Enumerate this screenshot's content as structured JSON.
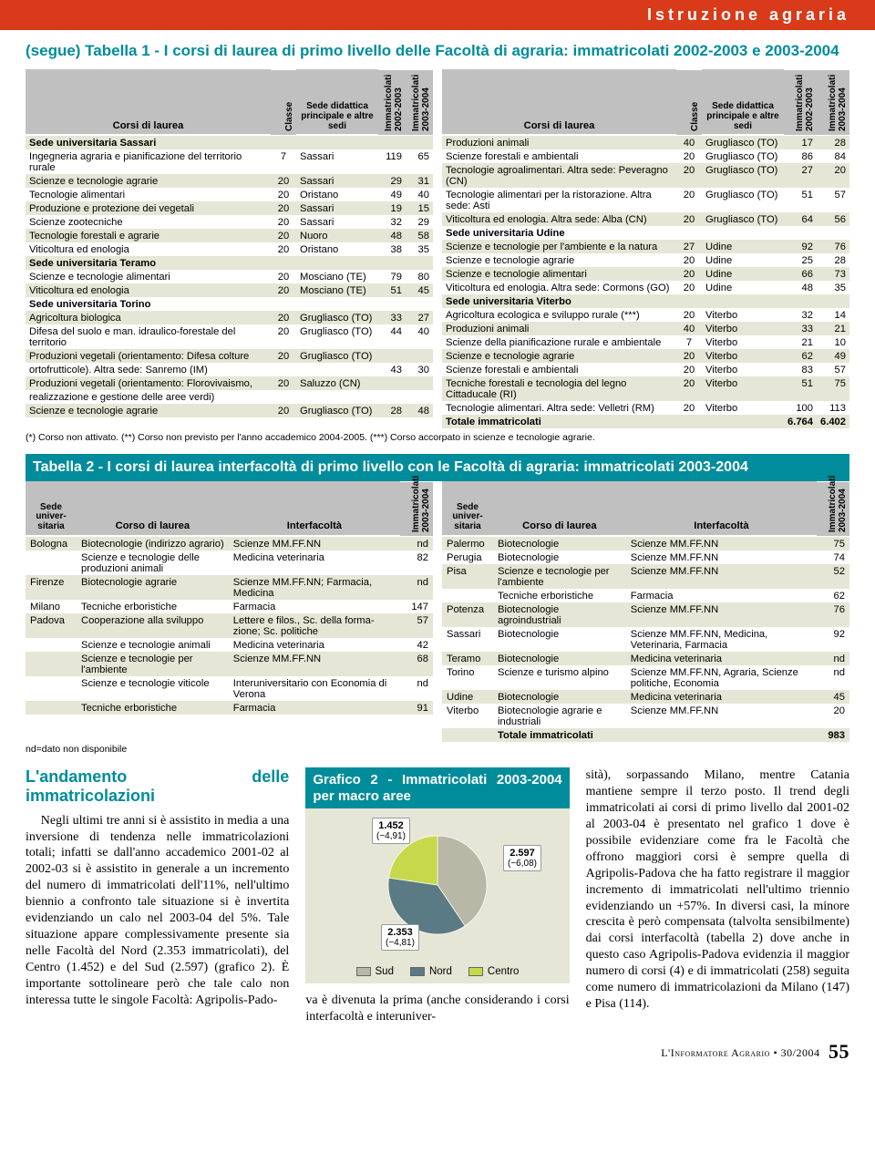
{
  "top_header": "Istruzione agraria",
  "table1": {
    "caption": "(segue) Tabella 1 - I corsi di laurea di primo livello delle Facoltà di agraria: immatricolati 2002-2003 e 2003-2004",
    "headers": {
      "corso": "Corsi di laurea",
      "classe": "Classe",
      "sede": "Sede didattica principale e altre sedi",
      "imm0203": "Immatricolati 2002-2003",
      "imm0304": "Immatricolati 2003-2004"
    },
    "left_rows": [
      {
        "section": true,
        "corso": "Sede universitaria Sassari"
      },
      {
        "corso": "Ingegneria agraria e pianificazione del territorio rurale",
        "classe": "7",
        "sede": "Sassari",
        "a": "119",
        "b": "65"
      },
      {
        "corso": "Scienze e tecnologie agrarie",
        "classe": "20",
        "sede": "Sassari",
        "a": "29",
        "b": "31"
      },
      {
        "corso": "Tecnologie alimentari",
        "classe": "20",
        "sede": "Oristano",
        "a": "49",
        "b": "40"
      },
      {
        "corso": "Produzione e protezione dei vegetali",
        "classe": "20",
        "sede": "Sassari",
        "a": "19",
        "b": "15"
      },
      {
        "corso": "Scienze zootecniche",
        "classe": "20",
        "sede": "Sassari",
        "a": "32",
        "b": "29"
      },
      {
        "corso": "Tecnologie forestali e agrarie",
        "classe": "20",
        "sede": "Nuoro",
        "a": "48",
        "b": "58"
      },
      {
        "corso": "Viticoltura ed enologia",
        "classe": "20",
        "sede": "Oristano",
        "a": "38",
        "b": "35"
      },
      {
        "section": true,
        "corso": "Sede universitaria Teramo"
      },
      {
        "corso": "Scienze e tecnologie alimentari",
        "classe": "20",
        "sede": "Mosciano (TE)",
        "a": "79",
        "b": "80"
      },
      {
        "corso": "Viticoltura ed enologia",
        "classe": "20",
        "sede": "Mosciano (TE)",
        "a": "51",
        "b": "45"
      },
      {
        "section": true,
        "corso": "Sede universitaria Torino"
      },
      {
        "corso": "Agricoltura biologica",
        "classe": "20",
        "sede": "Grugliasco (TO)",
        "a": "33",
        "b": "27"
      },
      {
        "corso": "Difesa del suolo e man. idraulico-forestale del territorio",
        "classe": "20",
        "sede": "Grugliasco (TO)",
        "a": "44",
        "b": "40"
      },
      {
        "corso": "Produzioni vegetali (orientamento: Difesa colture",
        "classe": "20",
        "sede": "Grugliasco (TO)",
        "a": "",
        "b": ""
      },
      {
        "corso": "    ortofrutticole). Altra sede: Sanremo (IM)",
        "classe": "",
        "sede": "",
        "a": "43",
        "b": "30"
      },
      {
        "corso": "Produzioni vegetali (orientamento: Florovivaismo,",
        "classe": "20",
        "sede": "Saluzzo (CN)",
        "a": "",
        "b": ""
      },
      {
        "corso": "    realizzazione e gestione delle aree verdi)",
        "classe": "",
        "sede": "",
        "a": "",
        "b": ""
      },
      {
        "corso": "Scienze e tecnologie agrarie",
        "classe": "20",
        "sede": "Grugliasco (TO)",
        "a": "28",
        "b": "48"
      }
    ],
    "right_rows": [
      {
        "corso": "Produzioni animali",
        "classe": "40",
        "sede": "Grugliasco (TO)",
        "a": "17",
        "b": "28"
      },
      {
        "corso": "Scienze forestali e ambientali",
        "classe": "20",
        "sede": "Grugliasco (TO)",
        "a": "86",
        "b": "84"
      },
      {
        "corso": "Tecnologie agroalimentari. Altra sede: Peveragno (CN)",
        "classe": "20",
        "sede": "Grugliasco (TO)",
        "a": "27",
        "b": "20"
      },
      {
        "corso": "Tecnologie alimentari per la ristorazione. Altra sede: Asti",
        "classe": "20",
        "sede": "Grugliasco (TO)",
        "a": "51",
        "b": "57"
      },
      {
        "corso": "Viticoltura ed enologia. Altra sede: Alba (CN)",
        "classe": "20",
        "sede": "Grugliasco (TO)",
        "a": "64",
        "b": "56"
      },
      {
        "section": true,
        "corso": "Sede universitaria Udine"
      },
      {
        "corso": "Scienze e tecnologie per l'ambiente e la natura",
        "classe": "27",
        "sede": "Udine",
        "a": "92",
        "b": "76"
      },
      {
        "corso": "Scienze e tecnologie agrarie",
        "classe": "20",
        "sede": "Udine",
        "a": "25",
        "b": "28"
      },
      {
        "corso": "Scienze e tecnologie alimentari",
        "classe": "20",
        "sede": "Udine",
        "a": "66",
        "b": "73"
      },
      {
        "corso": "Viticoltura ed enologia. Altra sede: Cormons (GO)",
        "classe": "20",
        "sede": "Udine",
        "a": "48",
        "b": "35"
      },
      {
        "section": true,
        "corso": "Sede universitaria Viterbo"
      },
      {
        "corso": "Agricoltura ecologica e sviluppo rurale (***)",
        "classe": "20",
        "sede": "Viterbo",
        "a": "32",
        "b": "14"
      },
      {
        "corso": "Produzioni animali",
        "classe": "40",
        "sede": "Viterbo",
        "a": "33",
        "b": "21"
      },
      {
        "corso": "Scienze della pianificazione rurale e ambientale",
        "classe": "7",
        "sede": "Viterbo",
        "a": "21",
        "b": "10"
      },
      {
        "corso": "Scienze e tecnologie agrarie",
        "classe": "20",
        "sede": "Viterbo",
        "a": "62",
        "b": "49"
      },
      {
        "corso": "Scienze forestali e ambientali",
        "classe": "20",
        "sede": "Viterbo",
        "a": "83",
        "b": "57"
      },
      {
        "corso": "Tecniche forestali e tecnologia del legno Cittaducale (RI)",
        "classe": "20",
        "sede": "Viterbo",
        "a": "51",
        "b": "75"
      },
      {
        "corso": "Tecnologie alimentari. Altra sede: Velletri (RM)",
        "classe": "20",
        "sede": "Viterbo",
        "a": "100",
        "b": "113"
      },
      {
        "section": true,
        "corso": "Totale immatricolati",
        "classe": "",
        "sede": "",
        "a": "6.764",
        "b": "6.402"
      }
    ],
    "footnote": "(*) Corso non attivato. (**) Corso non previsto per l'anno accademico 2004-2005. (***) Corso accorpato in scienze e tecnologie agrarie."
  },
  "table2": {
    "caption": "Tabella 2 - I corsi di laurea interfacoltà di primo livello con le Facoltà di agraria: immatricolati 2003-2004",
    "headers": {
      "sede": "Sede univer- sitaria",
      "corso": "Corso di laurea",
      "inter": "Interfacoltà",
      "imm": "Immatricolati 2003-2004"
    },
    "left_rows": [
      {
        "sede": "Bologna",
        "corso": "Biotecnologie (indirizzo agrario)",
        "inter": "Scienze MM.FF.NN",
        "n": "nd"
      },
      {
        "sede": "",
        "corso": "Scienze e tecnologie delle produzioni animali",
        "inter": "Medicina veterinaria",
        "n": "82"
      },
      {
        "sede": "Firenze",
        "corso": "Biotecnologie agrarie",
        "inter": "Scienze MM.FF.NN; Farmacia, Medicina",
        "n": "nd"
      },
      {
        "sede": "Milano",
        "corso": "Tecniche erboristiche",
        "inter": "Farmacia",
        "n": "147"
      },
      {
        "sede": "Padova",
        "corso": "Cooperazione alla sviluppo",
        "inter": "Lettere e filos., Sc. della forma- zione; Sc. politiche",
        "n": "57"
      },
      {
        "sede": "",
        "corso": "Scienze e tecnologie animali",
        "inter": "Medicina veterinaria",
        "n": "42"
      },
      {
        "sede": "",
        "corso": "Scienze e tecnologie per l'ambiente",
        "inter": "Scienze MM.FF.NN",
        "n": "68"
      },
      {
        "sede": "",
        "corso": "Scienze e tecnologie viticole",
        "inter": "Interuniversitario con Economia di Verona",
        "n": "nd"
      },
      {
        "sede": "",
        "corso": "Tecniche erboristiche",
        "inter": "Farmacia",
        "n": "91"
      }
    ],
    "right_rows": [
      {
        "sede": "Palermo",
        "corso": "Biotecnologie",
        "inter": "Scienze MM.FF.NN",
        "n": "75"
      },
      {
        "sede": "Perugia",
        "corso": "Biotecnologie",
        "inter": "Scienze MM.FF.NN",
        "n": "74"
      },
      {
        "sede": "Pisa",
        "corso": "Scienze e tecnologie per l'ambiente",
        "inter": "Scienze MM.FF.NN",
        "n": "52"
      },
      {
        "sede": "",
        "corso": "Tecniche erboristiche",
        "inter": "Farmacia",
        "n": "62"
      },
      {
        "sede": "Potenza",
        "corso": "Biotecnologie agroindustriali",
        "inter": "Scienze MM.FF.NN",
        "n": "76"
      },
      {
        "sede": "Sassari",
        "corso": "Biotecnologie",
        "inter": "Scienze MM.FF.NN, Medicina, Veterinaria, Farmacia",
        "n": "92"
      },
      {
        "sede": "Teramo",
        "corso": "Biotecnologie",
        "inter": "Medicina veterinaria",
        "n": "nd"
      },
      {
        "sede": "Torino",
        "corso": "Scienze e turismo alpino",
        "inter": "Scienze MM.FF.NN, Agraria, Scienze politiche, Economia",
        "n": "nd"
      },
      {
        "sede": "Udine",
        "corso": "Biotecnologie",
        "inter": "Medicina veterinaria",
        "n": "45"
      },
      {
        "sede": "Viterbo",
        "corso": "Biotecnologie agrarie e industriali",
        "inter": "Scienze MM.FF.NN",
        "n": "20"
      },
      {
        "sede": "",
        "corso": "Totale immatricolati",
        "inter": "",
        "n": "983",
        "bold": true
      }
    ],
    "footnote": "nd=dato non disponibile"
  },
  "article": {
    "heading": "L'andamento delle immatricolazioni",
    "col1": "Negli ultimi tre anni si è assistito in media a una inversione di tendenza nelle immatricolazioni totali; infatti se dall'anno accademico 2001-02 al 2002-03 si è assistito in generale a un incremento del numero di immatricolati dell'11%, nell'ultimo biennio a confronto tale situazione si è invertita evidenziando un calo nel 2003-04 del 5%. Tale situazione appare complessivamente presente sia nelle Facoltà del Nord (2.353 immatricolati), del Centro (1.452) e del Sud (2.597) (grafico 2). È importante sottolineare però che tale calo non interessa tutte le singole Facoltà: Agripolis-Pado-",
    "col2_tail": "va è divenuta la prima (anche considerando i corsi interfacoltà e interuniver-",
    "col3": "sità), sorpassando Milano, mentre Catania mantiene sempre il terzo posto. Il trend degli immatricolati ai corsi di primo livello dal 2001-02 al 2003-04 è presentato nel grafico 1 dove è possibile evidenziare come fra le Facoltà che offrono maggiori corsi è sempre quella di Agripolis-Padova che ha fatto registrare il maggior incremento di immatricolati nell'ultimo triennio evidenziando un +57%. In diversi casi, la minore crescita è però compensata (talvolta sensibilmente) dai corsi interfacoltà (tabella 2) dove anche in questo caso Agripolis-Padova evidenzia il maggior numero di corsi (4) e di immatricolati (258) seguita come numero di immatricolazioni da Milano (147) e Pisa (114)."
  },
  "chart": {
    "title": "Grafico 2 - Immatricolati 2003-2004 per macro aree",
    "type": "pie",
    "background": "#e6e6d6",
    "slices": [
      {
        "label": "Sud",
        "value": 2597,
        "delta": "(−6,08)",
        "color": "#b8b8a6"
      },
      {
        "label": "Nord",
        "value": 2353,
        "delta": "(−4,81)",
        "color": "#5a7a84"
      },
      {
        "label": "Centro",
        "value": 1452,
        "delta": "(−4,91)",
        "color": "#c5d94a"
      }
    ],
    "legend": [
      "Sud",
      "Nord",
      "Centro"
    ]
  },
  "footer": {
    "journal": "L'Informatore Agrario",
    "issue": "30/2004",
    "page": "55"
  },
  "colors": {
    "orange": "#d83a1a",
    "teal": "#008c9a",
    "zebra": "#e6e6d6",
    "header_grey": "#c0c0c0"
  }
}
